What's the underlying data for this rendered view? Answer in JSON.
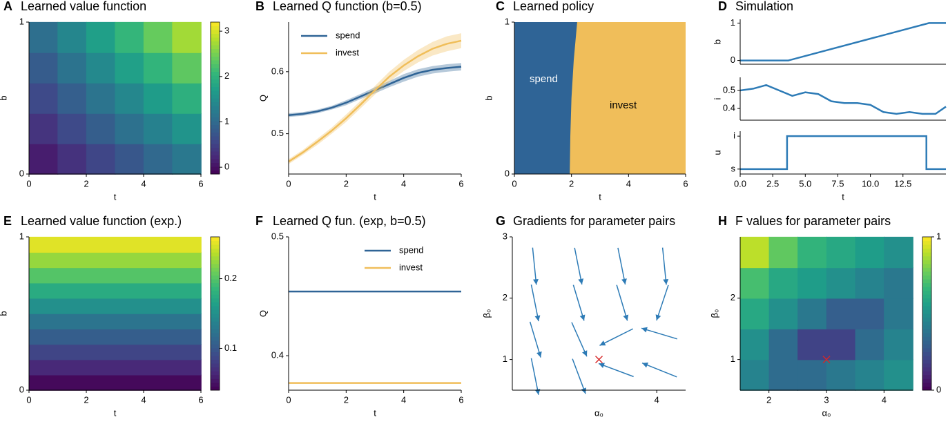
{
  "chart_data": [
    {
      "type": "heatmap",
      "panel": "A",
      "title": "Learned value function",
      "xlabel": "t",
      "ylabel": "b",
      "xlim": [
        0,
        6
      ],
      "ylim": [
        0,
        1
      ],
      "xticks": [
        0,
        2,
        4,
        6
      ],
      "yticks": [
        0,
        1
      ],
      "colormap": "viridis",
      "clim": [
        -0.15,
        3.2
      ],
      "cticks": [
        0,
        1,
        2,
        3
      ],
      "z": [
        [
          0.12,
          0.33,
          0.55,
          0.76,
          0.98,
          1.19
        ],
        [
          0.35,
          0.6,
          0.84,
          1.09,
          1.33,
          1.58
        ],
        [
          0.59,
          0.86,
          1.14,
          1.41,
          1.69,
          1.96
        ],
        [
          0.82,
          1.13,
          1.43,
          1.74,
          2.04,
          2.35
        ],
        [
          1.06,
          1.39,
          1.73,
          2.06,
          2.4,
          2.73
        ]
      ]
    },
    {
      "type": "line",
      "panel": "B",
      "title": "Learned Q function (b=0.5)",
      "xlabel": "t",
      "ylabel": "Q",
      "xlim": [
        0,
        6
      ],
      "ylim": [
        0.435,
        0.68
      ],
      "xticks": [
        0,
        2,
        4,
        6
      ],
      "yticks": [
        0.5,
        0.6
      ],
      "legend": "upper left",
      "x": [
        0,
        0.5,
        1,
        1.5,
        2,
        2.5,
        3,
        3.5,
        4,
        4.5,
        5,
        5.5,
        6
      ],
      "series": [
        {
          "name": "spend",
          "color": "#2f6496",
          "values": [
            0.53,
            0.532,
            0.536,
            0.542,
            0.55,
            0.56,
            0.57,
            0.58,
            0.59,
            0.598,
            0.603,
            0.606,
            0.608
          ],
          "errors": [
            0.003,
            0.003,
            0.003,
            0.003,
            0.004,
            0.004,
            0.005,
            0.005,
            0.006,
            0.006,
            0.006,
            0.006,
            0.006
          ]
        },
        {
          "name": "invest",
          "color": "#f0be5a",
          "values": [
            0.455,
            0.47,
            0.487,
            0.505,
            0.525,
            0.547,
            0.57,
            0.592,
            0.61,
            0.625,
            0.637,
            0.645,
            0.65
          ],
          "errors": [
            0.004,
            0.004,
            0.005,
            0.005,
            0.006,
            0.006,
            0.007,
            0.008,
            0.009,
            0.01,
            0.011,
            0.012,
            0.012
          ]
        }
      ]
    },
    {
      "type": "policy",
      "panel": "C",
      "title": "Learned policy",
      "xlabel": "t",
      "ylabel": "b",
      "xlim": [
        0,
        6
      ],
      "ylim": [
        0,
        1
      ],
      "xticks": [
        0,
        2,
        4,
        6
      ],
      "yticks": [
        0,
        1
      ],
      "boundary_b": [
        0,
        0.25,
        0.5,
        0.75,
        1
      ],
      "boundary_t": [
        1.94,
        1.96,
        2.0,
        2.08,
        2.2
      ],
      "regions": [
        {
          "name": "spend",
          "color": "#2f6496"
        },
        {
          "name": "invest",
          "color": "#f0be5a"
        }
      ]
    },
    {
      "type": "line",
      "panel": "D",
      "title": "Simulation",
      "ylabel": "b",
      "xlim": [
        0,
        15.8
      ],
      "ylim": [
        -0.1,
        1.1
      ],
      "yticks": [
        0,
        1
      ],
      "x": [
        0,
        3.7,
        14.5,
        15.8
      ],
      "series": [
        {
          "color": "#2d7bb6",
          "values": [
            0,
            0,
            1,
            1
          ]
        }
      ]
    },
    {
      "type": "line",
      "ylabel": "i",
      "xlim": [
        0,
        15.8
      ],
      "ylim": [
        0.335,
        0.573
      ],
      "yticks": [
        0.4,
        0.5
      ],
      "x": [
        0,
        1,
        2,
        3,
        4,
        5,
        6,
        7,
        8,
        9,
        10,
        11,
        12,
        13,
        14,
        15,
        15.8
      ],
      "series": [
        {
          "color": "#2d7bb6",
          "values": [
            0.5,
            0.51,
            0.53,
            0.5,
            0.47,
            0.49,
            0.48,
            0.44,
            0.43,
            0.43,
            0.42,
            0.38,
            0.37,
            0.38,
            0.37,
            0.37,
            0.41
          ]
        }
      ]
    },
    {
      "type": "line",
      "xlabel": "t",
      "ylabel": "u",
      "xlim": [
        0,
        15.8
      ],
      "ylim": [
        -0.15,
        1.15
      ],
      "yticks": [
        {
          "value": 0,
          "label": "s"
        },
        {
          "value": 1,
          "label": "i"
        }
      ],
      "xticks": [
        {
          "value": 0,
          "label": "0.0"
        },
        2.5,
        {
          "value": 5,
          "label": "5.0"
        },
        7.5,
        {
          "value": 10,
          "label": "10.0"
        },
        12.5
      ],
      "x": [
        0,
        3.6,
        3.6,
        14.3,
        14.3,
        15.8
      ],
      "series": [
        {
          "color": "#2d7bb6",
          "values": [
            0,
            0,
            1,
            1,
            0,
            0
          ]
        }
      ]
    },
    {
      "type": "heatmap",
      "panel": "E",
      "title": "Learned value function (exp.)",
      "xlabel": "t",
      "ylabel": "b",
      "xlim": [
        0,
        6
      ],
      "ylim": [
        0,
        1
      ],
      "xticks": [
        0,
        2,
        4,
        6
      ],
      "yticks": [
        0,
        1
      ],
      "colormap": "viridis",
      "clim": [
        0.04,
        0.26
      ],
      "cticks": [
        0.1,
        0.2
      ],
      "z": [
        [
          0.045
        ],
        [
          0.065
        ],
        [
          0.085
        ],
        [
          0.105
        ],
        [
          0.125
        ],
        [
          0.15
        ],
        [
          0.175
        ],
        [
          0.2
        ],
        [
          0.225
        ],
        [
          0.25
        ]
      ]
    },
    {
      "type": "line",
      "panel": "F",
      "title": "Learned Q fun. (exp, b=0.5)",
      "xlabel": "t",
      "ylabel": "Q",
      "xlim": [
        0,
        6
      ],
      "ylim": [
        0.371,
        0.5
      ],
      "xticks": [
        0,
        2,
        4,
        6
      ],
      "yticks": [
        0.4,
        0.5
      ],
      "legend": "upper right",
      "x": [
        0,
        6
      ],
      "series": [
        {
          "name": "spend",
          "color": "#2f6496",
          "values": [
            0.454,
            0.454
          ]
        },
        {
          "name": "invest",
          "color": "#f0be5a",
          "values": [
            0.377,
            0.377
          ]
        }
      ]
    },
    {
      "type": "quiver",
      "panel": "G",
      "title": "Gradients for parameter pairs",
      "xlabel": "α₀",
      "ylabel": "β₀",
      "xlim": [
        1.5,
        4.5
      ],
      "ylim": [
        0.5,
        3
      ],
      "xticks": [
        4
      ],
      "yticks": [
        1,
        2,
        3
      ],
      "color": "#2d7bb6",
      "x": [
        1.875,
        2.625,
        3.375,
        4.125,
        1.875,
        2.625,
        3.375,
        4.125,
        1.875,
        2.625,
        3.375,
        4.125,
        1.875,
        2.625,
        3.375,
        4.125
      ],
      "y": [
        0.8,
        0.8,
        0.8,
        0.8,
        1.4,
        1.4,
        1.4,
        1.4,
        2.0,
        2.0,
        2.0,
        2.0,
        2.6,
        2.6,
        2.6,
        2.6
      ],
      "u": [
        0.2,
        0.3,
        -0.8,
        -1,
        0.3,
        0.4,
        -0.6,
        -1,
        0.2,
        0.3,
        0.3,
        -0.3,
        0.1,
        0.2,
        0.2,
        0.1
      ],
      "v": [
        -1,
        -0.8,
        0.3,
        0.4,
        -1,
        -0.9,
        -0.3,
        0.3,
        -1,
        -1,
        -1,
        -0.9,
        -1,
        -1,
        -1,
        -1
      ],
      "marker": {
        "x": 3,
        "y": 1,
        "color": "#d62728"
      }
    },
    {
      "type": "heatmap",
      "panel": "H",
      "title": "F values for parameter pairs",
      "xlabel": "α₀",
      "ylabel": "β₀",
      "xlim": [
        1.5,
        4.5
      ],
      "ylim": [
        0.5,
        3
      ],
      "xticks": [
        2,
        3,
        4
      ],
      "yticks": [
        1,
        2
      ],
      "colormap": "viridis",
      "clim": [
        0,
        1
      ],
      "cticks": [
        0,
        1
      ],
      "z": [
        [
          0.45,
          0.35,
          0.35,
          0.4,
          0.45,
          0.5
        ],
        [
          0.5,
          0.35,
          0.2,
          0.2,
          0.35,
          0.45
        ],
        [
          0.6,
          0.5,
          0.4,
          0.3,
          0.3,
          0.4
        ],
        [
          0.7,
          0.6,
          0.55,
          0.5,
          0.45,
          0.4
        ],
        [
          0.9,
          0.75,
          0.65,
          0.6,
          0.55,
          0.5
        ]
      ],
      "marker": {
        "x": 3,
        "y": 1,
        "color": "#d62728"
      }
    }
  ]
}
